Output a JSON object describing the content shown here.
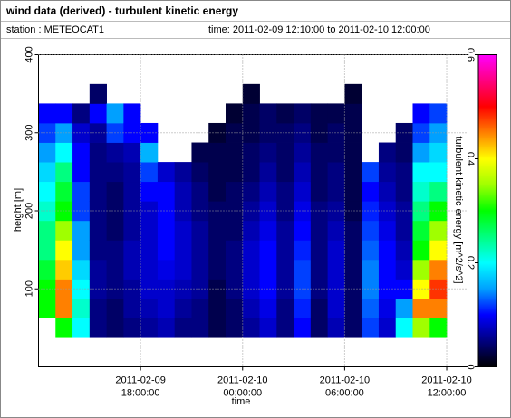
{
  "chart_data": {
    "type": "heatmap",
    "title": "wind data (derived) - turbulent kinetic energy",
    "station": "station : METEOCAT1",
    "period": "time: 2011-02-09 12:10:00 to 2011-02-10 12:00:00",
    "x_label": "time",
    "y_label": "height [m]",
    "colorbar_label": "turbulent kinetic energy [m^2/s^2]",
    "xlim": [
      "2011-02-09 12:00:00",
      "2011-02-10 13:15:00"
    ],
    "xticks": [
      {
        "value": "2011-02-09 18:00:00",
        "label": [
          "2011-02-09",
          "18:00:00"
        ]
      },
      {
        "value": "2011-02-10 00:00:00",
        "label": [
          "2011-02-10",
          "00:00:00"
        ]
      },
      {
        "value": "2011-02-10 06:00:00",
        "label": [
          "2011-02-10",
          "06:00:00"
        ]
      },
      {
        "value": "2011-02-10 12:00:00",
        "label": [
          "2011-02-10",
          "12:00:00"
        ]
      }
    ],
    "ylim": [
      0,
      400
    ],
    "yticks": [
      100,
      200,
      300,
      400
    ],
    "zlim": [
      0,
      0.6
    ],
    "zticks": [
      0,
      0.2,
      0.4,
      0.6
    ],
    "grid": true,
    "colormap": [
      "#000000",
      "#000080",
      "#0000ff",
      "#00a0ff",
      "#00ffff",
      "#00ff80",
      "#00ff00",
      "#a0ff00",
      "#ffff00",
      "#ff8000",
      "#ff0000",
      "#ff0080",
      "#ff00ff"
    ],
    "x_bins": [
      "2011-02-09 12:00:00",
      "2011-02-09 13:00:00",
      "2011-02-09 14:00:00",
      "2011-02-09 15:00:00",
      "2011-02-09 16:00:00",
      "2011-02-09 17:00:00",
      "2011-02-09 18:00:00",
      "2011-02-09 19:00:00",
      "2011-02-09 20:00:00",
      "2011-02-09 21:00:00",
      "2011-02-09 22:00:00",
      "2011-02-09 23:00:00",
      "2011-02-10 00:00:00",
      "2011-02-10 01:00:00",
      "2011-02-10 02:00:00",
      "2011-02-10 03:00:00",
      "2011-02-10 04:00:00",
      "2011-02-10 05:00:00",
      "2011-02-10 06:00:00",
      "2011-02-10 07:00:00",
      "2011-02-10 08:00:00",
      "2011-02-10 09:00:00",
      "2011-02-10 10:00:00",
      "2011-02-10 11:00:00",
      "2011-02-10 12:00:00"
    ],
    "y_bins": [
      37.5,
      62.5,
      87.5,
      112.5,
      137.5,
      162.5,
      187.5,
      212.5,
      237.5,
      262.5,
      287.5,
      312.5,
      337.5,
      362.5
    ],
    "z": [
      [
        null,
        0.3,
        0.3,
        0.28,
        0.25,
        0.25,
        0.22,
        0.2,
        0.18,
        0.15,
        0.12,
        0.1,
        null
      ],
      [
        0.3,
        0.45,
        0.45,
        0.42,
        0.4,
        0.35,
        0.3,
        0.28,
        0.25,
        0.2,
        0.15,
        0.1,
        null
      ],
      [
        0.2,
        0.22,
        0.2,
        0.18,
        0.15,
        0.15,
        0.12,
        0.12,
        0.1,
        0.1,
        0.08,
        0.05,
        null
      ],
      [
        0.05,
        0.05,
        0.06,
        0.06,
        0.05,
        0.05,
        0.05,
        0.05,
        0.05,
        0.05,
        0.06,
        0.1,
        0.04
      ],
      [
        0.04,
        0.04,
        0.05,
        0.05,
        0.05,
        0.04,
        0.04,
        0.04,
        0.05,
        0.06,
        0.12,
        0.15,
        null
      ],
      [
        0.05,
        0.06,
        0.06,
        0.07,
        0.07,
        0.06,
        0.06,
        0.06,
        0.06,
        0.07,
        0.1,
        0.1,
        null
      ],
      [
        0.06,
        0.07,
        0.08,
        0.08,
        0.08,
        0.08,
        0.08,
        0.1,
        0.12,
        0.16,
        0.1,
        null,
        null
      ],
      [
        0.07,
        0.08,
        0.08,
        0.09,
        0.1,
        0.1,
        0.1,
        0.1,
        0.08,
        null,
        null,
        null,
        null
      ],
      [
        0.05,
        0.06,
        0.07,
        0.08,
        0.08,
        0.08,
        0.07,
        0.07,
        0.06,
        null,
        null,
        null,
        null
      ],
      [
        0.05,
        0.05,
        0.06,
        0.06,
        0.06,
        0.06,
        0.05,
        0.05,
        0.04,
        0.03,
        null,
        null,
        null
      ],
      [
        0.03,
        0.03,
        0.03,
        0.04,
        0.04,
        0.04,
        0.04,
        0.03,
        0.03,
        0.03,
        0.02,
        null,
        null
      ],
      [
        0.04,
        0.04,
        0.05,
        0.05,
        0.05,
        0.04,
        0.04,
        0.04,
        0.03,
        0.03,
        0.03,
        0.02,
        null
      ],
      [
        0.06,
        0.07,
        0.08,
        0.08,
        0.08,
        0.07,
        0.06,
        0.05,
        0.04,
        0.04,
        0.03,
        0.03,
        0.02
      ],
      [
        0.08,
        0.09,
        0.1,
        0.1,
        0.1,
        0.09,
        0.08,
        0.07,
        0.06,
        0.05,
        0.04,
        0.04,
        null
      ],
      [
        0.05,
        0.05,
        0.06,
        0.06,
        0.06,
        0.06,
        0.05,
        0.05,
        0.04,
        0.04,
        0.04,
        0.03,
        null
      ],
      [
        0.1,
        0.11,
        0.12,
        0.12,
        0.11,
        0.1,
        0.09,
        0.08,
        0.07,
        0.06,
        0.05,
        0.04,
        null
      ],
      [
        0.04,
        0.04,
        0.05,
        0.05,
        0.05,
        0.05,
        0.05,
        0.04,
        0.04,
        0.04,
        0.03,
        0.03,
        null
      ],
      [
        0.07,
        0.08,
        0.08,
        0.08,
        0.08,
        0.07,
        0.06,
        0.05,
        0.05,
        0.04,
        0.04,
        0.03,
        null
      ],
      [
        0.04,
        0.04,
        0.04,
        0.04,
        0.04,
        0.04,
        0.03,
        0.03,
        0.03,
        0.03,
        0.03,
        0.03,
        0.02
      ],
      [
        0.12,
        0.13,
        0.14,
        0.14,
        0.13,
        0.12,
        0.11,
        0.1,
        0.12,
        null,
        null,
        null,
        null
      ],
      [
        0.08,
        0.09,
        0.1,
        0.1,
        0.1,
        0.09,
        0.08,
        0.07,
        0.06,
        0.05,
        null,
        null,
        null
      ],
      [
        0.2,
        0.15,
        0.1,
        0.08,
        0.07,
        0.06,
        0.06,
        0.05,
        0.05,
        0.04,
        0.04,
        null,
        null
      ],
      [
        0.35,
        0.45,
        0.4,
        0.35,
        0.3,
        0.28,
        0.25,
        0.22,
        0.2,
        0.15,
        0.12,
        0.1,
        null
      ],
      [
        0.3,
        0.45,
        0.48,
        0.45,
        0.4,
        0.35,
        0.3,
        0.25,
        0.2,
        0.18,
        0.15,
        0.12,
        null
      ]
    ]
  }
}
